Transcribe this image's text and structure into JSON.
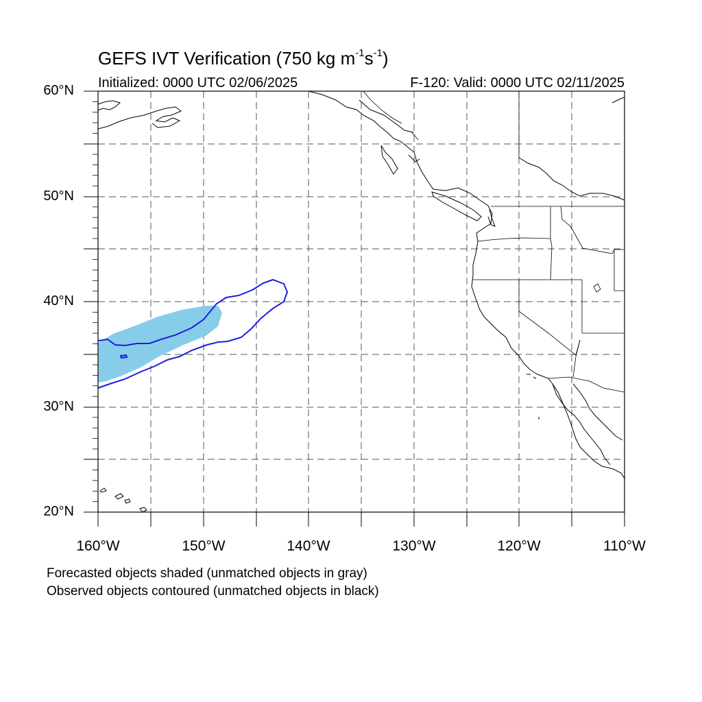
{
  "header": {
    "title_prefix": "GEFS IVT Verification (750 kg m",
    "title_exp1": "-1",
    "title_mid": "s",
    "title_exp2": "-1",
    "title_suffix": ")",
    "initialized": "Initialized: 0000 UTC 02/06/2025",
    "valid": "F-120: Valid: 0000 UTC 02/11/2025"
  },
  "axes": {
    "lat_labels": [
      {
        "id": "60n",
        "text": "60°N"
      },
      {
        "id": "50n",
        "text": "50°N"
      },
      {
        "id": "40n",
        "text": "40°N"
      },
      {
        "id": "30n",
        "text": "30°N"
      },
      {
        "id": "20n",
        "text": "20°N"
      }
    ],
    "lon_labels": [
      {
        "id": "160w",
        "text": "160°W"
      },
      {
        "id": "150w",
        "text": "150°W"
      },
      {
        "id": "140w",
        "text": "140°W"
      },
      {
        "id": "130w",
        "text": "130°W"
      },
      {
        "id": "120w",
        "text": "120°W"
      },
      {
        "id": "110w",
        "text": "110°W"
      }
    ],
    "lat_range": [
      20,
      60
    ],
    "lon_range": [
      -160,
      -110
    ],
    "grid": "dashed every 5°"
  },
  "legend": {
    "forecast_note": "Forecasted objects shaded (unmatched objects in gray)",
    "observed_note": "Observed objects contoured (unmatched objects in black)"
  },
  "colors": {
    "forecast_fill": "#87cdea",
    "observed_contour": "#1c1ce0",
    "coastline": "#000000",
    "grid": "#555555"
  }
}
